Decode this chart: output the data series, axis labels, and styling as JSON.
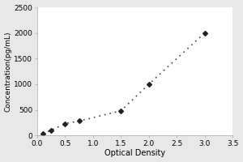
{
  "x_data": [
    0.1,
    0.25,
    0.5,
    0.75,
    1.5,
    2.0,
    3.0
  ],
  "y_data": [
    30,
    100,
    230,
    280,
    480,
    1000,
    2000
  ],
  "xlabel": "Optical Density",
  "ylabel": "Concentration(pg/mL)",
  "xlim": [
    0,
    3.5
  ],
  "ylim": [
    0,
    2500
  ],
  "xticks": [
    0,
    0.5,
    1.0,
    1.5,
    2.0,
    2.5,
    3.0,
    3.5
  ],
  "yticks": [
    0,
    500,
    1000,
    1500,
    2000,
    2500
  ],
  "marker": "D",
  "marker_color": "#222222",
  "marker_size": 3,
  "line_style": "dotted",
  "line_color": "#444444",
  "line_width": 1.2,
  "background_color": "#e8e8e8",
  "plot_bg_color": "#ffffff",
  "label_fontsize": 7,
  "tick_fontsize": 6.5,
  "ylabel_fontsize": 6.5
}
